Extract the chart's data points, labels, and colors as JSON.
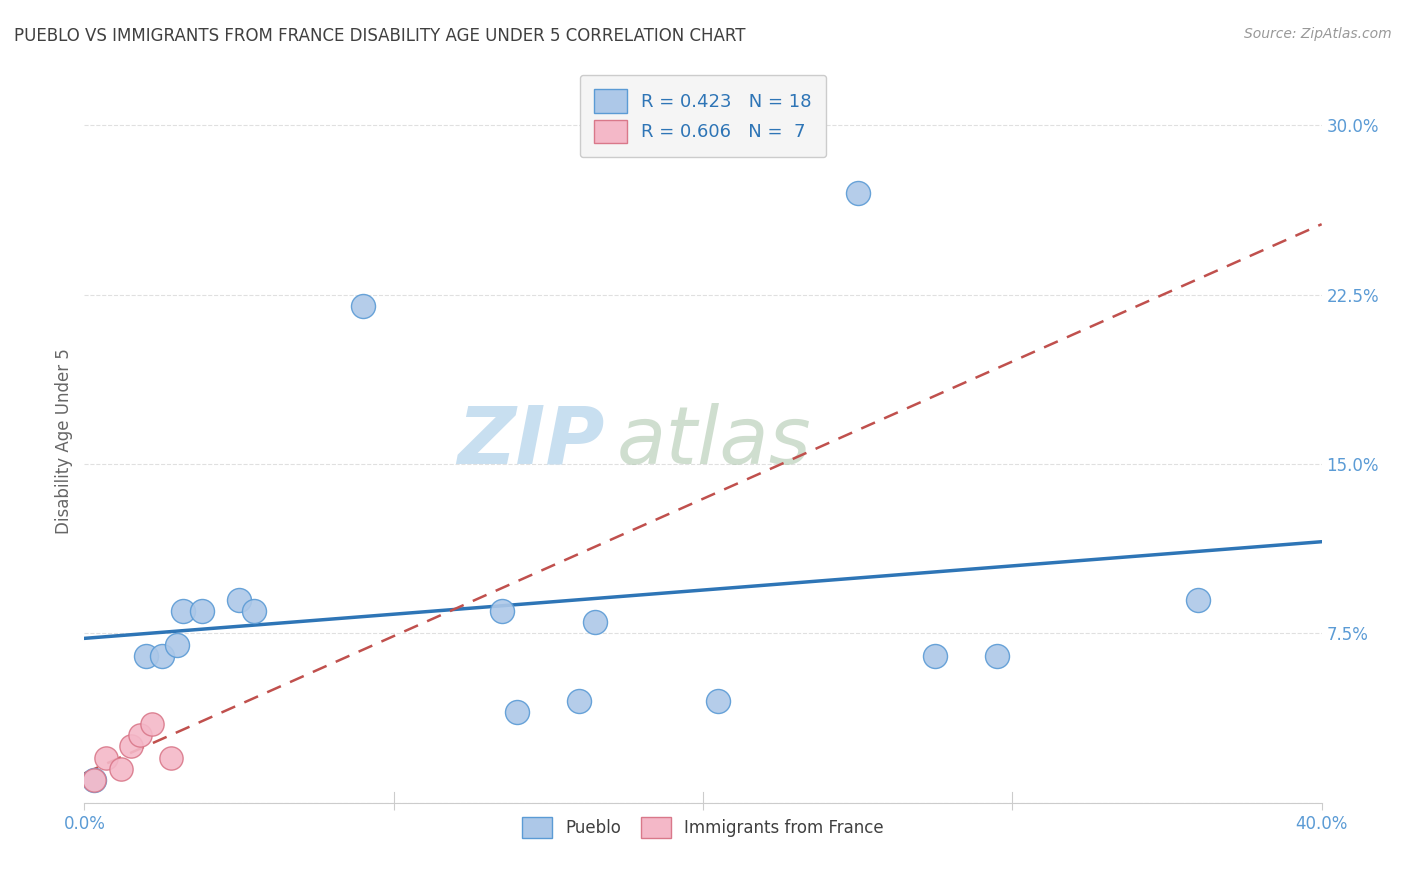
{
  "title": "PUEBLO VS IMMIGRANTS FROM FRANCE DISABILITY AGE UNDER 5 CORRELATION CHART",
  "source": "Source: ZipAtlas.com",
  "ylabel": "Disability Age Under 5",
  "xlim": [
    0.0,
    0.4
  ],
  "ylim": [
    0.0,
    0.32
  ],
  "xticks": [
    0.0,
    0.1,
    0.2,
    0.3,
    0.4
  ],
  "xticklabels": [
    "0.0%",
    "",
    "",
    "",
    "40.0%"
  ],
  "yticks": [
    0.0,
    0.075,
    0.15,
    0.225,
    0.3
  ],
  "yticklabels": [
    "",
    "7.5%",
    "15.0%",
    "22.5%",
    "30.0%"
  ],
  "pueblo_color": "#adc8e8",
  "pueblo_edge_color": "#5b9bd5",
  "france_color": "#f4b8c8",
  "france_edge_color": "#d9788a",
  "trend_pueblo_color": "#2e75b6",
  "trend_france_color": "#c0504d",
  "pueblo_R": 0.423,
  "pueblo_N": 18,
  "france_R": 0.606,
  "france_N": 7,
  "pueblo_x": [
    0.003,
    0.02,
    0.025,
    0.03,
    0.032,
    0.038,
    0.05,
    0.055,
    0.09,
    0.135,
    0.16,
    0.165,
    0.205,
    0.25,
    0.275,
    0.295,
    0.36,
    0.14
  ],
  "pueblo_y": [
    0.01,
    0.065,
    0.065,
    0.07,
    0.085,
    0.085,
    0.09,
    0.085,
    0.22,
    0.085,
    0.045,
    0.08,
    0.045,
    0.27,
    0.065,
    0.065,
    0.09,
    0.04
  ],
  "france_x": [
    0.003,
    0.007,
    0.012,
    0.015,
    0.018,
    0.022,
    0.028
  ],
  "france_y": [
    0.01,
    0.02,
    0.015,
    0.025,
    0.03,
    0.035,
    0.02
  ],
  "watermark_zip": "ZIP",
  "watermark_atlas": "atlas",
  "grid_color": "#e0e0e0",
  "tick_color": "#5b9bd5",
  "title_color": "#404040",
  "axis_label_color": "#666666",
  "legend_facecolor": "#f5f5f5",
  "legend_edgecolor": "#cccccc",
  "bottom_legend_labels": [
    "Pueblo",
    "Immigrants from France"
  ]
}
